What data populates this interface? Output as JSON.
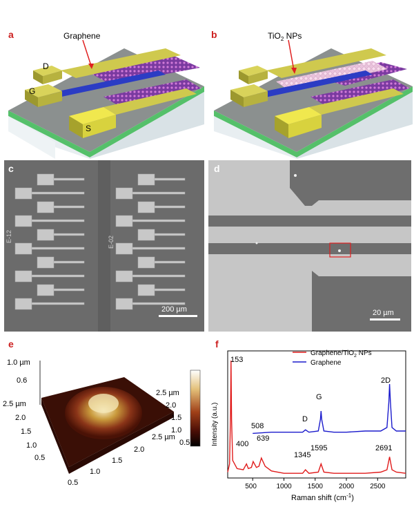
{
  "panels": {
    "a": {
      "letter": "a",
      "callout": "Graphene",
      "electrodes": [
        "D",
        "G",
        "S"
      ]
    },
    "b": {
      "letter": "b",
      "callout_main": "TiO",
      "callout_sub": "2",
      "callout_tail": " NPs"
    },
    "c": {
      "letter": "c",
      "chip_labels": [
        "E-12",
        "E-02"
      ],
      "scalebar": "200 µm"
    },
    "d": {
      "letter": "d",
      "scalebar": "20 µm"
    },
    "e": {
      "letter": "e",
      "z_top": "1.0 µm",
      "z_mid": "0.6",
      "y_ticks": [
        "2.5 µm",
        "2.0",
        "1.5",
        "1.0",
        "0.5"
      ],
      "x_ticks": [
        "0.5",
        "1.0",
        "1.5",
        "2.0",
        "2.5 µm"
      ],
      "right_ticks": [
        "2.5 µm",
        "2.0",
        "1.5",
        "1.0",
        "0.5"
      ]
    },
    "f": {
      "letter": "f",
      "xlabel_main": "Raman shift (cm",
      "xlabel_sup": "-1",
      "xlabel_tail": ")",
      "ylabel": "Intensity (a.u.)",
      "x_ticks": [
        "500",
        "1000",
        "1500",
        "2000",
        "2500"
      ],
      "legend": {
        "red_main": "Graphene/TiO",
        "red_sub": "2",
        "red_tail": " NPs",
        "blue": "Graphene"
      },
      "peaks_red": [
        "153",
        "400",
        "508",
        "639",
        "1345",
        "1595",
        "2691"
      ],
      "peaks_blue": [
        "D",
        "G",
        "2D"
      ]
    }
  },
  "colors": {
    "graphene_series": "#1a1acc",
    "composite_series": "#e01a1a",
    "electrode": "#c8c44a",
    "substrate_top": "#8a8f8e",
    "sem_gray": "#6f6f6f"
  },
  "chart_data": {
    "type": "line",
    "xlabel": "Raman shift (cm-1)",
    "ylabel": "Intensity (a.u.)",
    "xlim": [
      100,
      2950
    ],
    "series": [
      {
        "name": "Graphene/TiO2 NPs",
        "x": [
          100,
          130,
          145,
          153,
          162,
          180,
          250,
          350,
          400,
          430,
          480,
          508,
          560,
          600,
          639,
          700,
          800,
          1000,
          1200,
          1300,
          1345,
          1400,
          1550,
          1595,
          1640,
          1800,
          2000,
          2300,
          2550,
          2650,
          2691,
          2730,
          2800,
          2950
        ],
        "y": [
          0.05,
          0.12,
          0.55,
          1.0,
          0.5,
          0.15,
          0.08,
          0.07,
          0.12,
          0.08,
          0.09,
          0.14,
          0.09,
          0.1,
          0.17,
          0.1,
          0.06,
          0.04,
          0.04,
          0.04,
          0.07,
          0.04,
          0.05,
          0.12,
          0.05,
          0.04,
          0.04,
          0.04,
          0.05,
          0.07,
          0.18,
          0.07,
          0.05,
          0.04
        ]
      },
      {
        "name": "Graphene",
        "x": [
          500,
          800,
          1000,
          1300,
          1345,
          1400,
          1550,
          1585,
          1595,
          1605,
          1640,
          1800,
          2000,
          2300,
          2550,
          2650,
          2680,
          2691,
          2705,
          2730,
          2800,
          2950
        ],
        "y": [
          0.38,
          0.39,
          0.39,
          0.39,
          0.41,
          0.39,
          0.4,
          0.5,
          0.57,
          0.5,
          0.4,
          0.39,
          0.39,
          0.4,
          0.4,
          0.43,
          0.65,
          0.8,
          0.65,
          0.43,
          0.4,
          0.4
        ]
      }
    ]
  }
}
